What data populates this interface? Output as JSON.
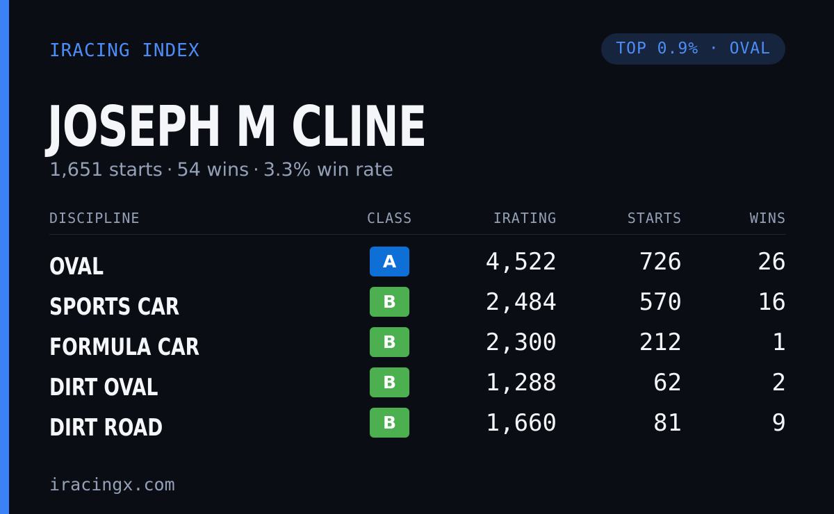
{
  "brand": "IRACING INDEX",
  "rank_badge": "TOP 0.9% · OVAL",
  "driver": {
    "name": "JOSEPH M CLINE",
    "starts_text": "1,651 starts",
    "wins_text": "54 wins",
    "win_rate_text": "3.3% win rate",
    "separator": "·"
  },
  "table": {
    "headers": {
      "discipline": "DISCIPLINE",
      "class": "CLASS",
      "irating": "IRATING",
      "starts": "STARTS",
      "wins": "WINS"
    },
    "rows": [
      {
        "discipline": "OVAL",
        "class": "A",
        "class_color": "#0e6fd6",
        "irating": "4,522",
        "starts": "726",
        "wins": "26"
      },
      {
        "discipline": "SPORTS CAR",
        "class": "B",
        "class_color": "#4caf50",
        "irating": "2,484",
        "starts": "570",
        "wins": "16"
      },
      {
        "discipline": "FORMULA CAR",
        "class": "B",
        "class_color": "#4caf50",
        "irating": "2,300",
        "starts": "212",
        "wins": "1"
      },
      {
        "discipline": "DIRT OVAL",
        "class": "B",
        "class_color": "#4caf50",
        "irating": "1,288",
        "starts": "62",
        "wins": "2"
      },
      {
        "discipline": "DIRT ROAD",
        "class": "B",
        "class_color": "#4caf50",
        "irating": "1,660",
        "starts": "81",
        "wins": "9"
      }
    ]
  },
  "footer": "iracingx.com",
  "colors": {
    "background": "#0a0d14",
    "accent": "#3b82f6",
    "muted_text": "#94a0b6",
    "primary_text": "#f5f6fa"
  }
}
